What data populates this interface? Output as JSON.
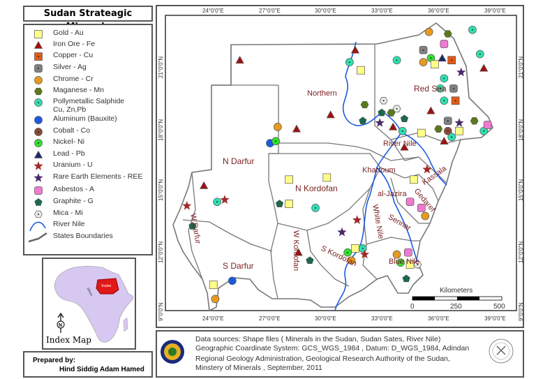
{
  "title": "Sudan Strateagic Minerals",
  "legend": [
    {
      "label": "Gold - Au",
      "shape": "square",
      "color": "#ffff88",
      "dot": false
    },
    {
      "label": "Iron Ore - Fe",
      "shape": "triangle",
      "color": "#a01010",
      "dot": false
    },
    {
      "label": "Copper - Cu",
      "shape": "square",
      "color": "#e05a1a",
      "dot": true
    },
    {
      "label": "Silver - Ag",
      "shape": "roundsquare",
      "color": "#808080",
      "dot": true
    },
    {
      "label": "Chrome - Cr",
      "shape": "circle",
      "color": "#e89a20",
      "dot": false
    },
    {
      "label": "Maganese - Mn",
      "shape": "hexagon",
      "color": "#5a7a1a",
      "dot": false
    },
    {
      "label": "Pollymetallic Salphide",
      "label2": "Cu, Zn,Pb",
      "shape": "circle",
      "color": "#30e0b0",
      "dot": true
    },
    {
      "label": "Aluminum (Bauxite)",
      "shape": "circle",
      "color": "#1a5ae0",
      "dot": false
    },
    {
      "label": "Cobalt - Co",
      "shape": "circle",
      "color": "#8a4a3a",
      "dot": true
    },
    {
      "label": "Nickel- Ni",
      "shape": "circle",
      "color": "#30e030",
      "dot": true
    },
    {
      "label": "Lead - Pb",
      "shape": "triangle",
      "color": "#1a2a6a",
      "dot": false
    },
    {
      "label": "Uranium - U",
      "shape": "star",
      "color": "#a02a2a",
      "dot": false
    },
    {
      "label": "Rare Earth Elements - REE",
      "shape": "star",
      "color": "#4a2a6a",
      "dot": false
    },
    {
      "label": "Asbestos - A",
      "shape": "roundsquare",
      "color": "#f07ad0",
      "dot": false
    },
    {
      "label": "Graphite - G",
      "shape": "pentagon",
      "color": "#1a6a4a",
      "dot": false
    },
    {
      "label": "Mica - Mi",
      "shape": "hexagon",
      "color": "#e8e8e8",
      "dot": true
    },
    {
      "label": "River Nile",
      "shape": "river",
      "color": "#1a5ae0",
      "dot": false
    },
    {
      "label": "States Boundaries",
      "shape": "boundary",
      "color": "#666666",
      "dot": false
    }
  ],
  "map": {
    "lon_labels": [
      "24°0'0\"E",
      "27°0'0\"E",
      "30°0'0\"E",
      "33°0'0\"E",
      "36°0'0\"E",
      "39°0'0\"E"
    ],
    "lat_labels": [
      "21°0'0\"N",
      "18°0'0\"N",
      "15°0'0\"N",
      "12°0'0\"N",
      "9°0'0\"N"
    ],
    "states": {
      "northern": "Northern",
      "red_sea": "Red Sea",
      "river_nile": "River Nile",
      "kassala": "Kassala",
      "khartoum": "Khartoum",
      "gedaref": "Gedaref",
      "jazira": "al-Jazira",
      "sennar": "Sennar",
      "white_nile": "White Nile",
      "blue_nile": "Blue Nile",
      "s_kordofan": "S Kordofan",
      "w_kordofan": "W Kordofan",
      "n_kordofan": "N Kordofan",
      "n_darfur": "N Darfur",
      "w_darfur": "W Darfur",
      "s_darfur": "S Darfur"
    },
    "scale": {
      "title": "Kilometers",
      "ticks": [
        "0",
        "250",
        "500"
      ]
    },
    "deposits": [
      [
        1,
        25.5,
        21.2
      ],
      [
        4,
        27.5,
        17.9
      ],
      [
        1,
        28.5,
        17.8
      ],
      [
        1,
        30.3,
        18.5
      ],
      [
        7,
        27.1,
        17.1
      ],
      [
        9,
        27.4,
        17.2
      ],
      [
        1,
        23.6,
        15.0
      ],
      [
        6,
        24.3,
        14.2
      ],
      [
        11,
        24.7,
        14.3
      ],
      [
        11,
        22.7,
        14.0
      ],
      [
        14,
        23.0,
        13.0
      ],
      [
        0,
        28.1,
        15.3
      ],
      [
        0,
        30.1,
        15.4
      ],
      [
        14,
        27.6,
        14.1
      ],
      [
        0,
        28.1,
        14.1
      ],
      [
        6,
        29.5,
        13.9
      ],
      [
        1,
        28.6,
        11.7
      ],
      [
        14,
        29.2,
        11.3
      ],
      [
        7,
        25.1,
        10.3
      ],
      [
        0,
        24.1,
        10.1
      ],
      [
        4,
        24.2,
        9.4
      ],
      [
        4,
        35.5,
        22.6
      ],
      [
        5,
        36.5,
        22.5
      ],
      [
        6,
        37.8,
        22.7
      ],
      [
        13,
        36.3,
        22.0
      ],
      [
        3,
        35.2,
        21.7
      ],
      [
        9,
        35.6,
        21.3
      ],
      [
        10,
        36.2,
        21.3
      ],
      [
        2,
        36.7,
        21.2
      ],
      [
        4,
        35.2,
        21.1
      ],
      [
        0,
        35.8,
        21.0
      ],
      [
        6,
        38.2,
        21.5
      ],
      [
        1,
        38.4,
        20.8
      ],
      [
        12,
        37.2,
        20.6
      ],
      [
        6,
        33.8,
        21.2
      ],
      [
        1,
        31.6,
        21.7
      ],
      [
        6,
        31.3,
        21.1
      ],
      [
        0,
        31.9,
        20.7
      ],
      [
        6,
        36.3,
        20.3
      ],
      [
        3,
        36.8,
        19.8
      ],
      [
        6,
        36.1,
        19.8
      ],
      [
        6,
        36.3,
        19.2
      ],
      [
        2,
        36.9,
        19.2
      ],
      [
        1,
        35.6,
        18.7
      ],
      [
        5,
        32.1,
        19.0
      ],
      [
        14,
        32.0,
        18.2
      ],
      [
        15,
        33.1,
        19.2
      ],
      [
        15,
        33.8,
        18.8
      ],
      [
        14,
        33.0,
        18.6
      ],
      [
        5,
        33.5,
        18.6
      ],
      [
        12,
        32.9,
        18.1
      ],
      [
        1,
        33.6,
        17.9
      ],
      [
        14,
        34.2,
        18.3
      ],
      [
        6,
        34.1,
        17.7
      ],
      [
        1,
        34.2,
        16.9
      ],
      [
        0,
        35.1,
        17.6
      ],
      [
        3,
        36.5,
        18.2
      ],
      [
        12,
        37.1,
        18.1
      ],
      [
        5,
        37.9,
        18.2
      ],
      [
        5,
        36.0,
        17.8
      ],
      [
        8,
        36.5,
        17.7
      ],
      [
        6,
        36.7,
        17.4
      ],
      [
        0,
        37.1,
        17.7
      ],
      [
        1,
        36.3,
        17.2
      ],
      [
        6,
        38.4,
        17.7
      ],
      [
        13,
        38.6,
        18.0
      ],
      [
        0,
        34.7,
        15.3
      ],
      [
        11,
        35.4,
        15.8
      ],
      [
        13,
        34.5,
        14.2
      ],
      [
        13,
        35.1,
        13.9
      ],
      [
        4,
        35.3,
        13.5
      ],
      [
        11,
        31.7,
        13.3
      ],
      [
        12,
        30.9,
        12.7
      ],
      [
        9,
        31.2,
        11.7
      ],
      [
        0,
        31.6,
        11.9
      ],
      [
        6,
        32.0,
        11.9
      ],
      [
        11,
        32.1,
        11.6
      ],
      [
        4,
        31.4,
        11.3
      ],
      [
        4,
        33.8,
        11.6
      ],
      [
        13,
        34.4,
        11.7
      ],
      [
        9,
        34.0,
        11.2
      ],
      [
        0,
        34.5,
        11.1
      ],
      [
        15,
        34.9,
        11.1
      ],
      [
        14,
        34.3,
        10.4
      ]
    ]
  },
  "index_map": {
    "title": "Index Map",
    "africa": "Africa",
    "sudan": "Sudan",
    "north": "N"
  },
  "prepared": {
    "label": "Prepared by:",
    "name": "Hind Siddig Adam Hamed"
  },
  "info": {
    "line1": "Data sources:  Shape files ( Minerals in the Sudan, Sudan Sates, River Nile)",
    "line2": "Geographic Coardinate System: GCS_WGS_1984 , Datum: D_WGS_1984, Adindan",
    "line3": "Regional Geology Administration, Geological Research Authority of the Sudan,",
    "line4": "Minstery of Minerals , September, 2011"
  }
}
